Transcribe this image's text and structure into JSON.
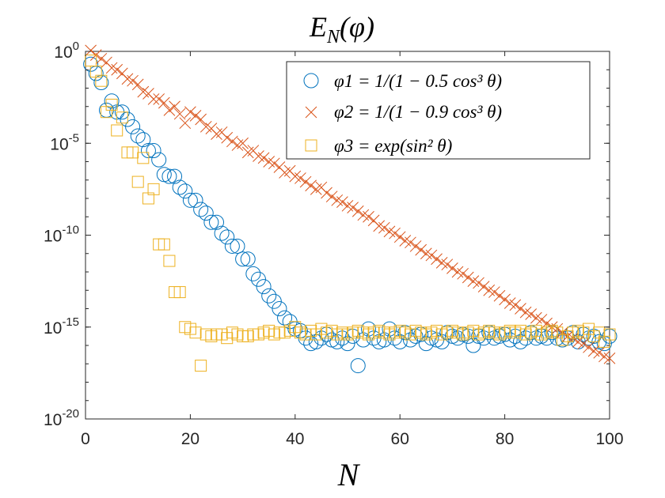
{
  "chart_data": {
    "type": "scatter",
    "title": "E_N(φ)",
    "xlabel": "N",
    "ylabel": "",
    "yscale": "log",
    "xlim": [
      0,
      100
    ],
    "ylim_exponent": [
      -20,
      0
    ],
    "x_ticks": [
      0,
      20,
      40,
      60,
      80,
      100
    ],
    "y_ticks": [
      {
        "base": "10",
        "exp": "0",
        "value_exponent": 0
      },
      {
        "base": "10",
        "exp": "-5",
        "value_exponent": -5
      },
      {
        "base": "10",
        "exp": "-10",
        "value_exponent": -10
      },
      {
        "base": "10",
        "exp": "-15",
        "value_exponent": -15
      },
      {
        "base": "10",
        "exp": "-20",
        "value_exponent": -20
      }
    ],
    "legend_position": "top-right",
    "series": [
      {
        "name": "φ1 = 1/(1 − 0.5 cos³ θ)",
        "marker": "circle",
        "color": "#0072BD",
        "x": [
          1,
          2,
          3,
          4,
          5,
          6,
          7,
          8,
          9,
          10,
          11,
          12,
          13,
          14,
          15,
          16,
          17,
          18,
          19,
          20,
          21,
          22,
          23,
          24,
          25,
          26,
          27,
          28,
          29,
          30,
          31,
          32,
          33,
          34,
          35,
          36,
          37,
          38,
          39,
          40,
          41,
          42,
          43,
          44,
          45,
          46,
          47,
          48,
          49,
          50,
          51,
          52,
          53,
          54,
          55,
          56,
          57,
          58,
          59,
          60,
          61,
          62,
          63,
          64,
          65,
          66,
          67,
          68,
          69,
          70,
          71,
          72,
          73,
          74,
          75,
          76,
          77,
          78,
          79,
          80,
          81,
          82,
          83,
          84,
          85,
          86,
          87,
          88,
          89,
          90,
          91,
          92,
          93,
          94,
          95,
          96,
          97,
          98,
          99,
          100
        ],
        "log10_values": [
          -0.7,
          -1.2,
          -1.7,
          -3.2,
          -2.7,
          -3.3,
          -3.3,
          -3.7,
          -4.1,
          -4.6,
          -4.8,
          -5.4,
          -5.4,
          -5.9,
          -6.7,
          -6.8,
          -6.8,
          -7.4,
          -7.6,
          -8.1,
          -8.1,
          -8.6,
          -8.8,
          -9.3,
          -9.3,
          -9.9,
          -10.1,
          -10.6,
          -10.6,
          -11.3,
          -11.3,
          -12.1,
          -12.4,
          -12.8,
          -13.3,
          -13.6,
          -14.0,
          -14.5,
          -14.7,
          -15.1,
          -15.2,
          -15.6,
          -15.9,
          -15.8,
          -15.6,
          -15.4,
          -15.7,
          -15.8,
          -15.6,
          -15.9,
          -15.5,
          -17.1,
          -15.7,
          -15.1,
          -15.6,
          -15.8,
          -15.7,
          -15.1,
          -15.6,
          -15.8,
          -15.3,
          -15.7,
          -15.5,
          -15.4,
          -15.9,
          -15.6,
          -15.7,
          -15.8,
          -15.3,
          -15.5,
          -15.6,
          -15.4,
          -15.5,
          -16.0,
          -15.5,
          -15.6,
          -15.3,
          -15.6,
          -15.5,
          -15.4,
          -15.7,
          -15.5,
          -15.8,
          -15.6,
          -15.3,
          -15.6,
          -15.5,
          -15.6,
          -15.3,
          -15.6,
          -15.7,
          -15.6,
          -15.3,
          -15.8,
          -15.4,
          -15.6,
          -15.5,
          -15.8,
          -15.9,
          -15.5
        ]
      },
      {
        "name": "φ2 = 1/(1 − 0.9 cos³ θ)",
        "marker": "x",
        "color": "#D95319",
        "x": [
          1,
          2,
          3,
          4,
          5,
          6,
          7,
          8,
          9,
          10,
          11,
          12,
          13,
          14,
          15,
          16,
          17,
          18,
          19,
          20,
          21,
          22,
          23,
          24,
          25,
          26,
          27,
          28,
          29,
          30,
          31,
          32,
          33,
          34,
          35,
          36,
          37,
          38,
          39,
          40,
          41,
          42,
          43,
          44,
          45,
          46,
          47,
          48,
          49,
          50,
          51,
          52,
          53,
          54,
          55,
          56,
          57,
          58,
          59,
          60,
          61,
          62,
          63,
          64,
          65,
          66,
          67,
          68,
          69,
          70,
          71,
          72,
          73,
          74,
          75,
          76,
          77,
          78,
          79,
          80,
          81,
          82,
          83,
          84,
          85,
          86,
          87,
          88,
          89,
          90,
          91,
          92,
          93,
          94,
          95,
          96,
          97,
          98,
          99,
          100
        ],
        "log10_values": [
          0.05,
          -0.2,
          -0.4,
          -0.6,
          -0.9,
          -1.0,
          -1.2,
          -1.5,
          -1.6,
          -1.8,
          -2.2,
          -2.3,
          -2.6,
          -2.6,
          -2.8,
          -3.2,
          -3.0,
          -3.4,
          -3.9,
          -3.3,
          -3.5,
          -3.7,
          -4.1,
          -4.2,
          -4.5,
          -4.4,
          -4.7,
          -4.9,
          -5.1,
          -5.0,
          -5.5,
          -5.4,
          -5.7,
          -5.8,
          -6.0,
          -6.1,
          -6.3,
          -6.6,
          -6.5,
          -6.8,
          -6.9,
          -7.1,
          -7.3,
          -7.5,
          -7.4,
          -7.7,
          -7.9,
          -8.1,
          -8.2,
          -8.4,
          -8.5,
          -8.7,
          -8.9,
          -9.0,
          -9.2,
          -9.5,
          -9.6,
          -9.8,
          -9.9,
          -10.1,
          -10.3,
          -10.4,
          -10.6,
          -10.8,
          -11.0,
          -11.1,
          -11.3,
          -11.5,
          -11.6,
          -11.8,
          -12.0,
          -12.1,
          -12.3,
          -12.5,
          -12.6,
          -12.8,
          -13.0,
          -13.1,
          -13.3,
          -13.5,
          -13.7,
          -13.8,
          -14.0,
          -14.2,
          -14.3,
          -14.5,
          -14.6,
          -14.8,
          -15.0,
          -15.1,
          -15.3,
          -15.5,
          -15.6,
          -15.8,
          -15.9,
          -16.1,
          -16.3,
          -16.4,
          -16.6,
          -16.7
        ]
      },
      {
        "name": "φ3 = exp(sin² θ)",
        "marker": "square",
        "color": "#EDB120",
        "x": [
          1,
          2,
          3,
          4,
          5,
          6,
          7,
          8,
          9,
          10,
          11,
          12,
          13,
          14,
          15,
          16,
          17,
          18,
          19,
          20,
          21,
          22,
          23,
          24,
          25,
          26,
          27,
          28,
          29,
          30,
          31,
          32,
          33,
          34,
          35,
          36,
          37,
          38,
          39,
          40,
          41,
          42,
          43,
          44,
          45,
          46,
          47,
          48,
          49,
          50,
          51,
          52,
          53,
          54,
          55,
          56,
          57,
          58,
          59,
          60,
          61,
          62,
          63,
          64,
          65,
          66,
          67,
          68,
          69,
          70,
          71,
          72,
          73,
          74,
          75,
          76,
          77,
          78,
          79,
          80,
          81,
          82,
          83,
          84,
          85,
          86,
          87,
          88,
          89,
          90,
          91,
          92,
          93,
          94,
          95,
          96,
          97,
          98,
          99,
          100
        ],
        "log10_values": [
          -0.5,
          -1.1,
          -1.6,
          -3.3,
          -2.9,
          -4.3,
          -3.6,
          -5.5,
          -5.5,
          -7.1,
          -5.8,
          -8.0,
          -7.5,
          -10.5,
          -10.5,
          -11.4,
          -13.1,
          -13.1,
          -15.0,
          -15.1,
          -15.3,
          -17.1,
          -15.4,
          -15.5,
          -15.4,
          -15.4,
          -15.6,
          -15.3,
          -15.4,
          -15.5,
          -15.5,
          -15.4,
          -15.4,
          -15.3,
          -15.2,
          -15.4,
          -15.3,
          -15.3,
          -15.2,
          -15.0,
          -15.3,
          -15.4,
          -15.2,
          -15.4,
          -15.1,
          -15.3,
          -15.2,
          -15.4,
          -15.3,
          -15.4,
          -15.3,
          -15.2,
          -15.3,
          -15.4,
          -15.3,
          -15.2,
          -15.3,
          -15.4,
          -15.3,
          -15.2,
          -15.3,
          -15.4,
          -15.2,
          -15.3,
          -15.4,
          -15.3,
          -15.2,
          -15.4,
          -15.3,
          -15.2,
          -15.3,
          -15.4,
          -15.3,
          -15.2,
          -15.4,
          -15.3,
          -15.2,
          -15.3,
          -15.4,
          -15.3,
          -15.2,
          -15.3,
          -15.2,
          -15.4,
          -15.3,
          -15.2,
          -15.4,
          -15.3,
          -15.2,
          -15.3,
          -15.7,
          -15.5,
          -15.3,
          -15.2,
          -15.3,
          -15.1,
          -15.5,
          -15.3,
          -15.8,
          -15.4
        ]
      }
    ]
  }
}
